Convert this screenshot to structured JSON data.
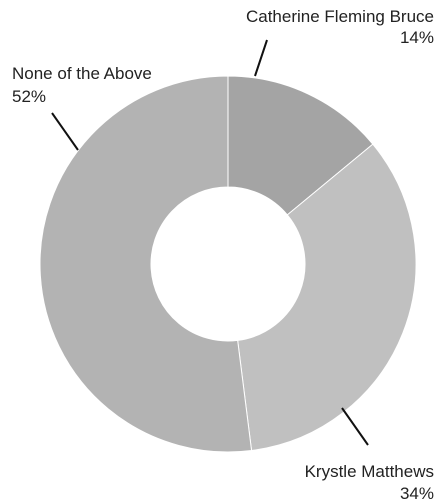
{
  "chart_data": {
    "type": "pie",
    "donut": true,
    "categories": [
      "Catherine Fleming Bruce",
      "Krystle Matthews",
      "None of the Above"
    ],
    "values": [
      14,
      34,
      52
    ],
    "value_labels": [
      "14%",
      "34%",
      "52%"
    ],
    "colors": [
      "#a4a4a4",
      "#c0c0c0",
      "#b3b3b3"
    ],
    "title": "",
    "legend": "none"
  }
}
